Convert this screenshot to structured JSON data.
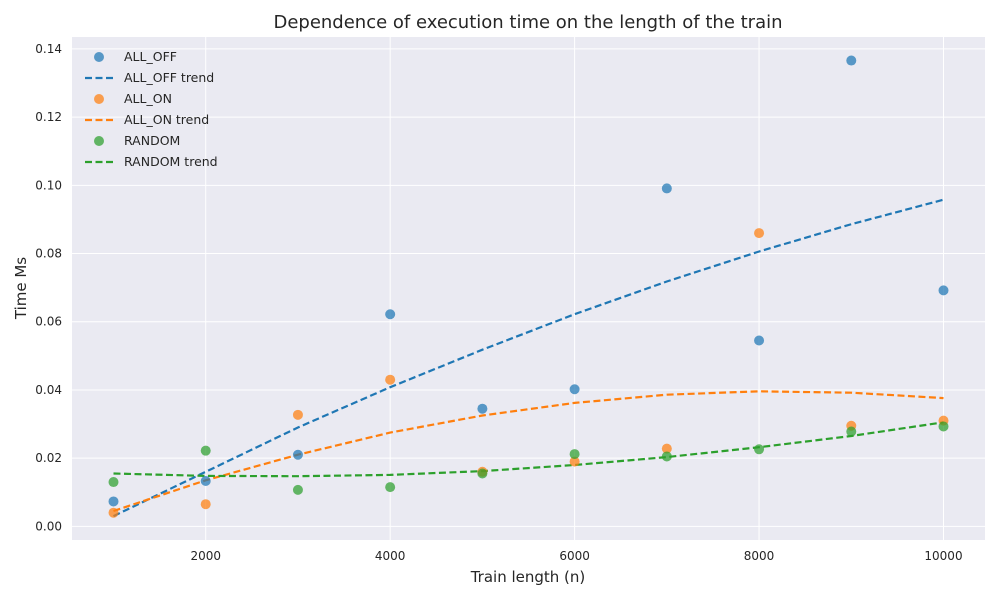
{
  "chart_data": {
    "type": "scatter",
    "title": "Dependence of execution time on the length of the train",
    "xlabel": "Train length (n)",
    "ylabel": "Time Ms",
    "xlim": [
      550,
      10450
    ],
    "ylim": [
      -0.004,
      0.1435
    ],
    "xticks": [
      2000,
      4000,
      6000,
      8000,
      10000
    ],
    "yticks": [
      0.0,
      0.02,
      0.04,
      0.06,
      0.08,
      0.1,
      0.12,
      0.14
    ],
    "xtick_labels": [
      "2000",
      "4000",
      "6000",
      "8000",
      "10000"
    ],
    "ytick_labels": [
      "0.00",
      "0.02",
      "0.04",
      "0.06",
      "0.08",
      "0.10",
      "0.12",
      "0.14"
    ],
    "grid": true,
    "legend_position": "top-left",
    "x": [
      1000,
      2000,
      3000,
      4000,
      5000,
      6000,
      7000,
      8000,
      9000,
      10000
    ],
    "series": [
      {
        "name": "ALL_OFF",
        "color": "#1f77b4",
        "values": [
          0.0073,
          0.0133,
          0.021,
          0.0622,
          0.0345,
          0.0402,
          0.0991,
          0.0545,
          0.1366,
          0.0692
        ],
        "trend_name": "ALL_OFF trend",
        "trend": [
          0.003,
          0.016,
          0.029,
          0.0408,
          0.0518,
          0.0622,
          0.0718,
          0.0806,
          0.0886,
          0.0958
        ]
      },
      {
        "name": "ALL_ON",
        "color": "#ff7f0e",
        "values": [
          0.004,
          0.0065,
          0.0327,
          0.043,
          0.016,
          0.019,
          0.0228,
          0.086,
          0.0295,
          0.031
        ],
        "trend_name": "ALL_ON trend",
        "trend": [
          0.0045,
          0.0135,
          0.021,
          0.0275,
          0.0325,
          0.0362,
          0.0386,
          0.0396,
          0.0392,
          0.0376
        ]
      },
      {
        "name": "RANDOM",
        "color": "#2ca02c",
        "values": [
          0.013,
          0.0222,
          0.0107,
          0.0115,
          0.0155,
          0.0212,
          0.0205,
          0.0226,
          0.0278,
          0.0293
        ],
        "trend_name": "RANDOM trend",
        "trend": [
          0.0155,
          0.0148,
          0.0147,
          0.0151,
          0.0162,
          0.018,
          0.0203,
          0.0232,
          0.0265,
          0.0305
        ]
      }
    ]
  }
}
